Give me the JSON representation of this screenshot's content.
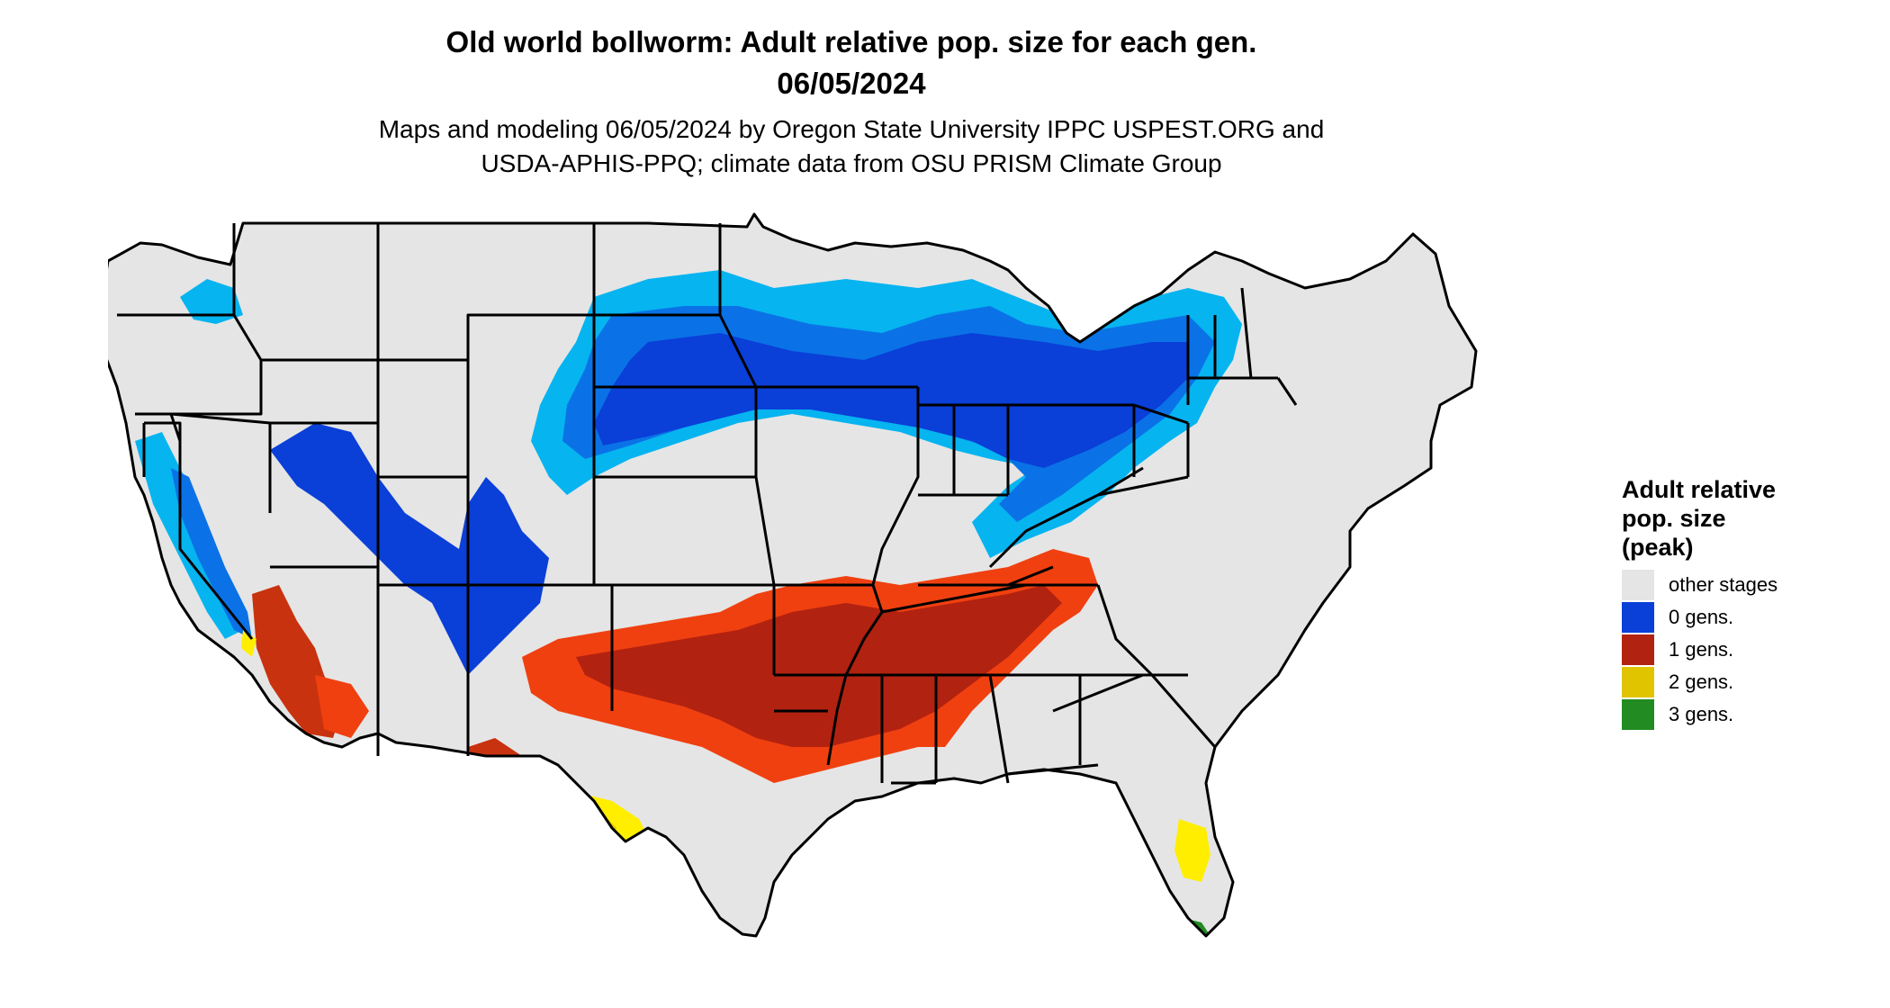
{
  "title": {
    "line1": "Old world bollworm: Adult relative pop. size for each gen.",
    "line2": "06/05/2024"
  },
  "subtitle": {
    "line1": "Maps and modeling 06/05/2024 by Oregon State University IPPC USPEST.ORG and",
    "line2": "USDA-APHIS-PPQ; climate data from OSU PRISM Climate Group"
  },
  "legend": {
    "title_line1": "Adult relative",
    "title_line2": "pop. size",
    "title_line3": "(peak)",
    "items": [
      {
        "label": "other stages",
        "color": "#e5e5e5"
      },
      {
        "label": "0 gens.",
        "color": "#0a3fd8"
      },
      {
        "label": "1 gens.",
        "color": "#b22210"
      },
      {
        "label": "2 gens.",
        "color": "#e0c400"
      },
      {
        "label": "3 gens.",
        "color": "#228b22"
      }
    ]
  },
  "map_colors": {
    "land": "#e5e5e5",
    "border": "#000000",
    "zero_light": "#06b4f0",
    "zero_mid": "#0a72e6",
    "zero_dark": "#0a3fd8",
    "one_bright": "#f04010",
    "one_dark": "#b22210",
    "two_bright": "#ffee00",
    "two_dark": "#e0c400",
    "three": "#228b22"
  }
}
